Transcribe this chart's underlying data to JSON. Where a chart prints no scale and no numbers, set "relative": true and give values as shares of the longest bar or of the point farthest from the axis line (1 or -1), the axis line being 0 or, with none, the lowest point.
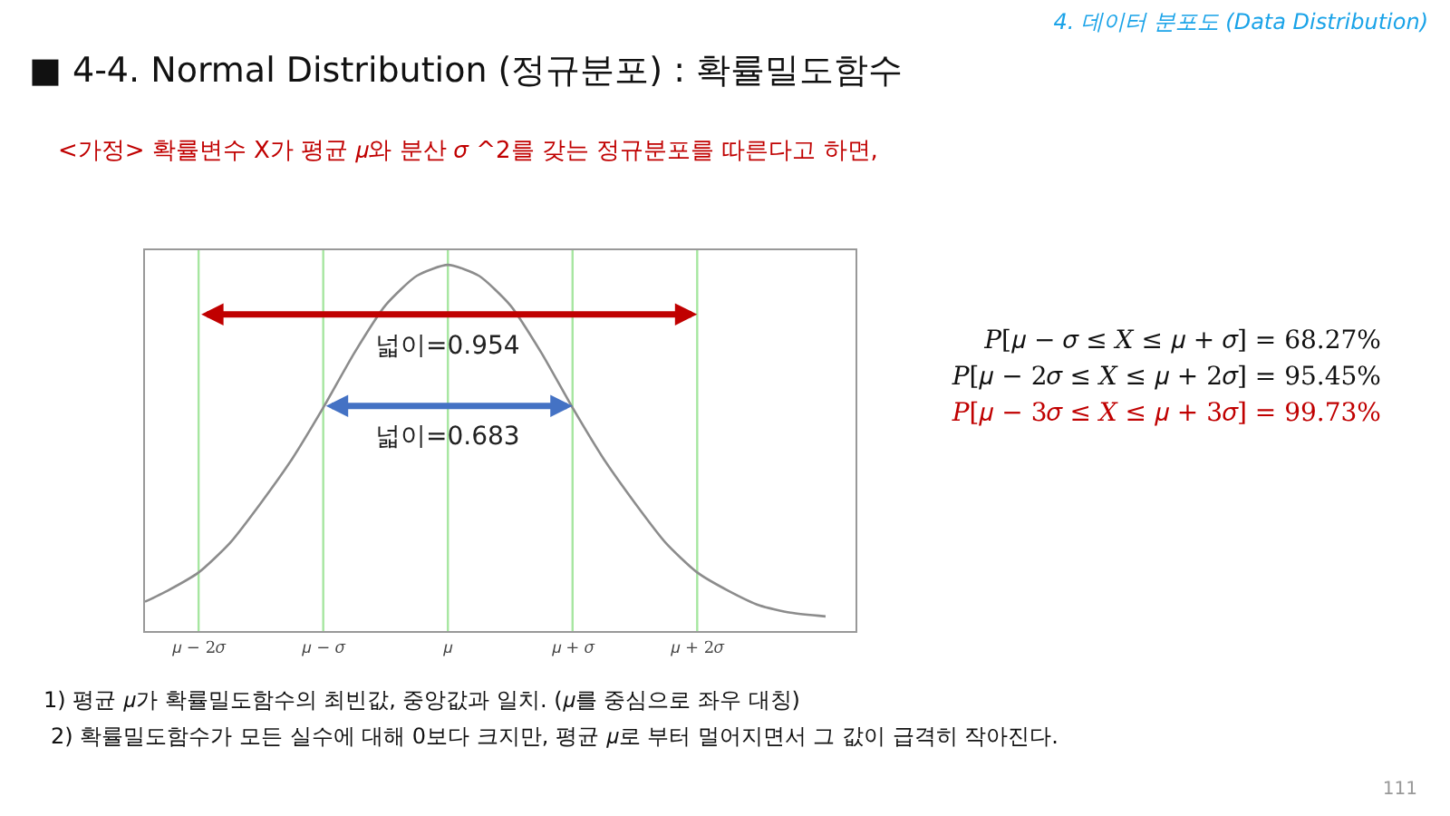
{
  "chart_data": {
    "type": "line",
    "relative": true,
    "title": "■ 4-4. Normal Distribution (정규분포) : 확률밀도함수",
    "subtitle": "<가정> 확률변수 X가 평균 𝜇와 분산 𝜎 ^2를 갖는 정규분포를 따른다고 하면,",
    "x": [
      -2.43,
      -2.25,
      -2,
      -1.75,
      -1.5,
      -1.25,
      -1,
      -0.75,
      -0.5,
      -0.25,
      0,
      0.25,
      0.5,
      0.75,
      1,
      1.25,
      1.5,
      1.75,
      2,
      2.25,
      2.5,
      2.75,
      3.03
    ],
    "series": [
      {
        "color": "#8c8c8c",
        "values": [
          0.08,
          0.11,
          0.16,
          0.24,
          0.35,
          0.47,
          0.61,
          0.76,
          0.89,
          0.97,
          1,
          0.97,
          0.89,
          0.76,
          0.61,
          0.47,
          0.35,
          0.24,
          0.16,
          0.11,
          0.07,
          0.05,
          0.04
        ]
      }
    ],
    "xlim": [
      -2.43,
      3.27
    ],
    "xticks": [
      {
        "value": -2,
        "label": "𝜇 − 2𝜎"
      },
      {
        "value": -1,
        "label": "𝜇 − 𝜎"
      },
      {
        "value": 0,
        "label": "𝜇"
      },
      {
        "value": 1,
        "label": "𝜇 + 𝜎"
      },
      {
        "value": 2,
        "label": "𝜇 + 2𝜎"
      }
    ],
    "ref_lines": [
      {
        "axis": "x",
        "value": -2,
        "label": null,
        "color": "#a6e6a0"
      },
      {
        "axis": "x",
        "value": -1,
        "label": null,
        "color": "#a6e6a0"
      },
      {
        "axis": "x",
        "value": 0,
        "label": null,
        "color": "#a6e6a0"
      },
      {
        "axis": "x",
        "value": 1,
        "label": null,
        "color": "#a6e6a0"
      },
      {
        "axis": "x",
        "value": 2,
        "label": null,
        "color": "#a6e6a0"
      }
    ],
    "marker": "none",
    "line_style": "solid",
    "grid": false,
    "annotations": [
      {
        "text": "넓이=0.954",
        "x": 0,
        "y": 0.78
      },
      {
        "text": "넓이=0.683",
        "x": 0,
        "y": 0.53
      },
      "4. 데이터 분포도 (Data Distribution)",
      "𝑃[𝜇 − 𝜎 ≤ 𝑋 ≤ 𝜇 + 𝜎] = 68.27%",
      "𝑃[𝜇 − 2𝜎 ≤ 𝑋 ≤ 𝜇 + 2𝜎] = 95.45%",
      "𝑃[𝜇 − 3𝜎 ≤ 𝑋 ≤ 𝜇 + 3𝜎] = 99.73%",
      "1) 평균 𝜇가 확률밀도함수의 최빈값, 중앙값과 일치. (𝜇를 중심으로 좌우 대칭)",
      "2) 확률밀도함수가 모든 실수에 대해 0보다 크지만, 평균 𝜇로 부터 멀어지면서 그 값이 급격히 작아진다.",
      "111"
    ]
  }
}
